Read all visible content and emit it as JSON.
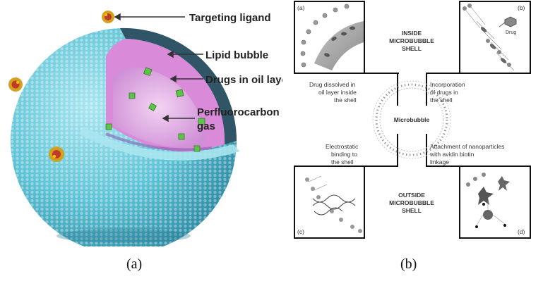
{
  "figure_a": {
    "labels": {
      "targeting_ligand": "Targeting ligand",
      "lipid_bubble": "Lipid bubble",
      "drugs_in_oil_layer": "Drugs in oil layer",
      "perfluorocarbon_line1": "Perfluorocarbon",
      "perfluorocarbon_line2": "gas"
    },
    "caption": "(a)"
  },
  "figure_b": {
    "inside_shell": [
      "INSIDE",
      "MICROBUBBLE",
      "SHELL"
    ],
    "outside_shell": [
      "OUTSIDE",
      "MICROBUBBLE",
      "SHELL"
    ],
    "center_label": "Microbubble",
    "drug_tag": "Drug",
    "corner_tags": {
      "a": "(a)",
      "b": "(b)",
      "c": "(c)",
      "d": "(d)"
    },
    "desc_a": [
      "Drug dissolved in",
      "oil layer inside",
      "the shell"
    ],
    "desc_b": [
      "Incorporation",
      "of drugs in",
      " the shell"
    ],
    "desc_c": [
      "Electrostatic",
      "binding to",
      "the shell"
    ],
    "desc_d": [
      "Attachment of nanoparticles",
      "with avidin biotin",
      "linkage"
    ],
    "caption": "(b)"
  },
  "colors": {
    "sphere": "#5ec3d6",
    "sphere_dark": "#2e8fa8",
    "oil_layer": "#d98ad9",
    "gas": "#e6b3ea",
    "drug": "#5fc24a",
    "ligand": "#d4a020"
  }
}
